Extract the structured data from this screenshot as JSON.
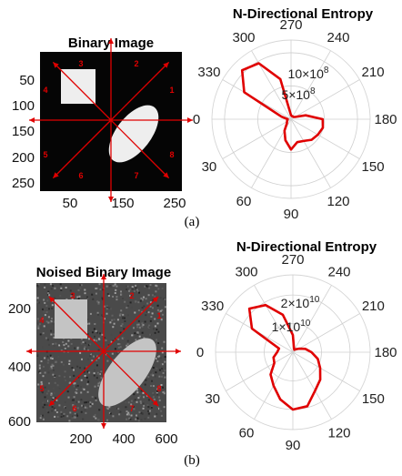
{
  "panel_a": {
    "image_title": "Binary Image",
    "x_ticks": [
      "50",
      "150",
      "250"
    ],
    "y_ticks": [
      "50",
      "100",
      "150",
      "200",
      "250"
    ],
    "direction_labels": [
      "1",
      "2",
      "3",
      "4",
      "5",
      "6",
      "7",
      "8"
    ],
    "caption": "(a)"
  },
  "panel_b": {
    "image_title": "Noised Binary Image",
    "x_ticks": [
      "200",
      "400",
      "600"
    ],
    "y_ticks": [
      "200",
      "400",
      "600"
    ],
    "direction_labels": [
      "1",
      "2",
      "3",
      "4",
      "5",
      "6",
      "7",
      "8"
    ],
    "caption": "(b)"
  },
  "colors": {
    "line": "#e00000",
    "image_bg": "#050505",
    "shape": "#eeeeee",
    "noise_bg": "#4a4a4a",
    "grid": "#cfcfcf"
  },
  "chart_data": [
    {
      "type": "polar_line",
      "title": "N-Directional Entropy",
      "angle_unit": "degrees",
      "angle_zero": "left",
      "angle_direction": "counterclockwise",
      "theta_ticks": [
        "0",
        "30",
        "60",
        "90",
        "120",
        "150",
        "180",
        "210",
        "240",
        "270",
        "300",
        "330"
      ],
      "r_ticks": [
        "5×10^8",
        "10×10^8"
      ],
      "r_tick_values": [
        500000000,
        1000000000
      ],
      "r_max": 1200000000,
      "series": [
        {
          "theta": [
            0,
            15,
            30,
            45,
            60,
            75,
            90,
            105,
            120,
            135,
            150,
            165,
            180,
            195,
            210,
            225,
            240,
            255,
            270,
            285,
            300,
            315,
            330,
            345
          ],
          "r": [
            50000000,
            60000000,
            70000000,
            90000000,
            200000000,
            330000000,
            460000000,
            360000000,
            380000000,
            440000000,
            470000000,
            500000000,
            480000000,
            230000000,
            70000000,
            50000000,
            50000000,
            50000000,
            60000000,
            630000000,
            980000000,
            1050000000,
            820000000,
            150000000
          ]
        }
      ]
    },
    {
      "type": "polar_line",
      "title": "N-Directional Entropy",
      "angle_unit": "degrees",
      "angle_zero": "left",
      "angle_direction": "counterclockwise",
      "theta_ticks": [
        "0",
        "30",
        "60",
        "90",
        "120",
        "150",
        "180",
        "210",
        "240",
        "270",
        "300",
        "330"
      ],
      "r_ticks": [
        "1×10^10",
        "2×10^10"
      ],
      "r_tick_values": [
        10000000000,
        20000000000
      ],
      "r_max": 27000000000,
      "series": [
        {
          "theta": [
            0,
            15,
            30,
            45,
            60,
            75,
            90,
            105,
            120,
            135,
            150,
            165,
            180,
            195,
            210,
            225,
            240,
            255,
            270,
            285,
            300,
            315,
            330,
            345
          ],
          "r": [
            5500000000,
            7000000000,
            7500000000,
            11000000000,
            13500000000,
            17000000000,
            20000000000,
            19500000000,
            15500000000,
            13500000000,
            11000000000,
            9000000000,
            6500000000,
            4500000000,
            2500000000,
            1500000000,
            1000000000,
            1500000000,
            6000000000,
            13500000000,
            19000000000,
            21500000000,
            16500000000,
            5000000000
          ]
        }
      ]
    }
  ]
}
